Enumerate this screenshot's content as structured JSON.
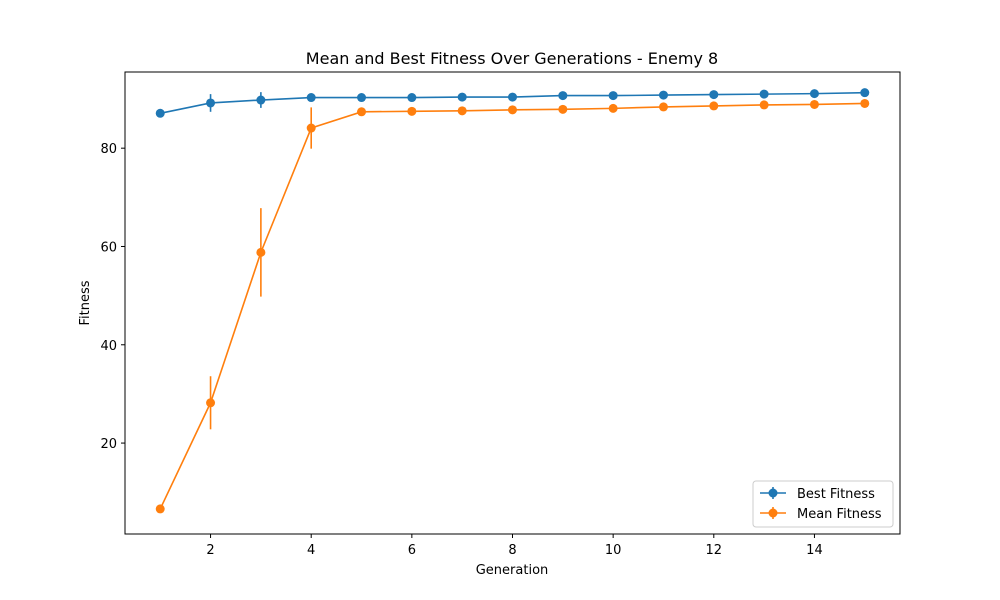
{
  "chart_data": {
    "type": "line",
    "title": "Mean and Best Fitness Over Generations - Enemy 8",
    "xlabel": "Generation",
    "ylabel": "Fitness",
    "xlim": [
      0.3,
      15.7
    ],
    "ylim": [
      1.5,
      95.5
    ],
    "xticks": [
      2,
      4,
      6,
      8,
      10,
      12,
      14
    ],
    "yticks": [
      20,
      40,
      60,
      80
    ],
    "grid": false,
    "legend_position": "bottom-right",
    "x": [
      1,
      2,
      3,
      4,
      5,
      6,
      7,
      8,
      9,
      10,
      11,
      12,
      13,
      14,
      15
    ],
    "series": [
      {
        "name": "Best Fitness",
        "color": "#1f77b4",
        "values": [
          87.1,
          89.2,
          89.8,
          90.3,
          90.3,
          90.3,
          90.4,
          90.4,
          90.7,
          90.7,
          90.8,
          90.9,
          91.0,
          91.1,
          91.3
        ],
        "errors": [
          0.4,
          1.8,
          1.6,
          0.3,
          0.2,
          0.2,
          0.2,
          0.2,
          0.3,
          0.2,
          0.2,
          0.2,
          0.2,
          0.2,
          0.2
        ]
      },
      {
        "name": "Mean Fitness",
        "color": "#ff7f0e",
        "values": [
          6.6,
          28.2,
          58.8,
          84.1,
          87.4,
          87.5,
          87.6,
          87.8,
          87.9,
          88.1,
          88.4,
          88.6,
          88.8,
          88.9,
          89.1
        ],
        "errors": [
          0.6,
          5.4,
          9.0,
          4.2,
          0.4,
          0.3,
          0.3,
          0.3,
          0.3,
          0.3,
          0.3,
          0.3,
          0.3,
          0.3,
          0.3
        ]
      }
    ]
  }
}
